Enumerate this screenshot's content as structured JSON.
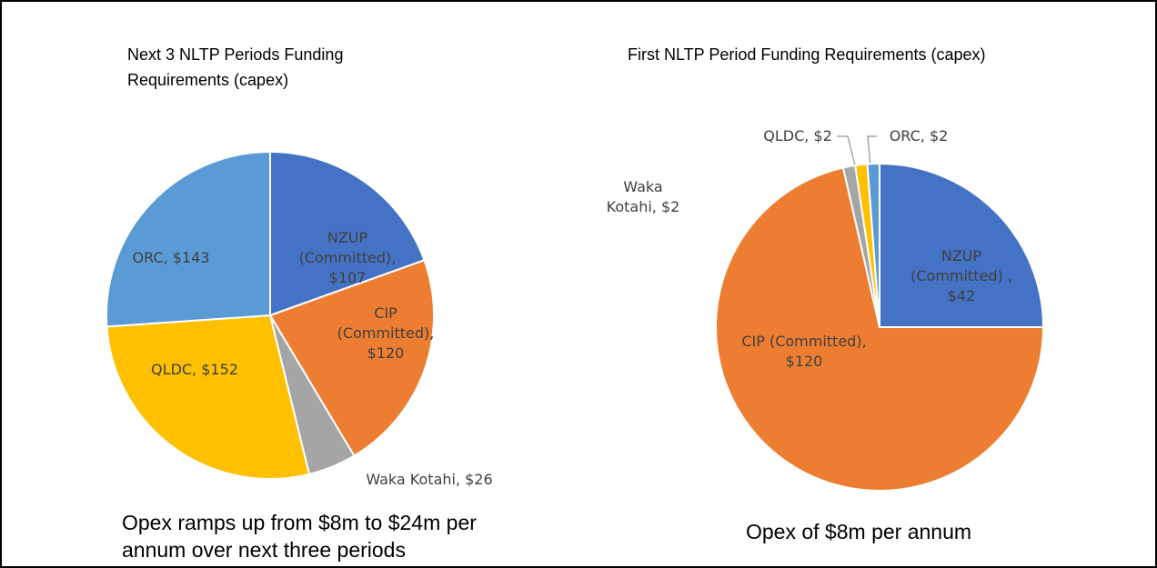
{
  "chart_data": [
    {
      "type": "pie",
      "title": "Next 3 NLTP Periods Funding Requirements (capex)",
      "values": [
        107,
        120,
        26,
        152,
        143
      ],
      "value_labels": [
        "NZUP (Committed), $107",
        "CIP (Committed), $120",
        "Waka Kotahi,  $26",
        "QLDC, $152",
        "ORC, $143"
      ],
      "colors": [
        "#4472c4",
        "#ed7d31",
        "#a5a5a5",
        "#ffc000",
        "#5b9bd5"
      ],
      "note": "Opex ramps up from $8m to $24m per annum over next three periods"
    },
    {
      "type": "pie",
      "title": "First NLTP Period Funding Requirements (capex)",
      "values": [
        42,
        120,
        2,
        2,
        2
      ],
      "value_labels": [
        "NZUP (Committed) , $42",
        "CIP (Committed), $120",
        "Waka Kotahi,  $2",
        "QLDC, $2",
        "ORC, $2"
      ],
      "colors": [
        "#4472c4",
        "#ed7d31",
        "#a5a5a5",
        "#ffc000",
        "#5b9bd5"
      ],
      "note": "Opex of $8m per annum"
    }
  ]
}
